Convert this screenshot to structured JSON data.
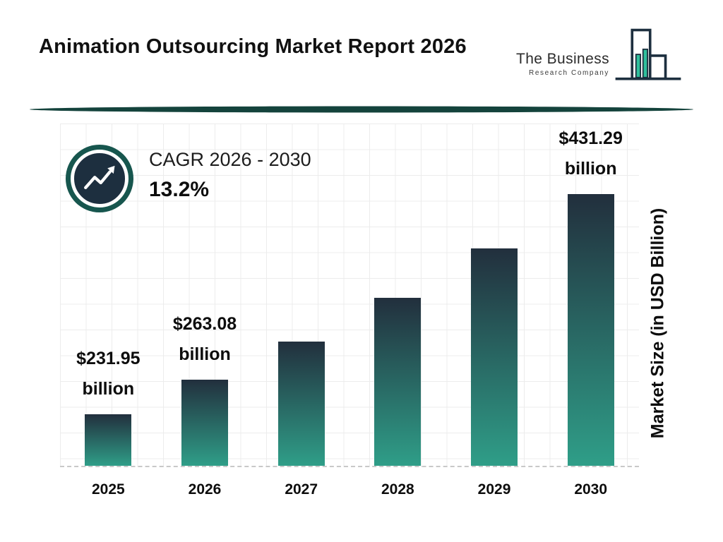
{
  "header": {
    "title": "Animation Outsourcing Market Report 2026",
    "logo": {
      "name": "The Business",
      "tagline": "Research Company"
    }
  },
  "cagr": {
    "label": "CAGR 2026 - 2030",
    "value": "13.2%"
  },
  "chart_data": {
    "type": "bar",
    "categories": [
      "2025",
      "2026",
      "2027",
      "2028",
      "2029",
      "2030"
    ],
    "values": [
      231.95,
      263.08,
      297.81,
      337.12,
      381.62,
      431.29
    ],
    "unit": "USD Billion",
    "ylabel": "Market Size (in USD Billion)",
    "xlabel": "",
    "ylim": [
      185,
      495
    ],
    "grid": true,
    "legend": false,
    "bar_labels": [
      {
        "category": "2025",
        "line1": "$231.95",
        "line2": "billion"
      },
      {
        "category": "2026",
        "line1": "$263.08",
        "line2": "billion"
      },
      {
        "category": "2030",
        "line1": "$431.29",
        "line2": "billion"
      }
    ]
  },
  "colors": {
    "bar_gradient_top": "#222f3d",
    "bar_gradient_bottom": "#2f9e88",
    "accent_teal": "#17564e",
    "navy": "#1d2f3f",
    "logo_teal": "#2fbf9c",
    "divider": "#14433c",
    "text": "#111111"
  }
}
